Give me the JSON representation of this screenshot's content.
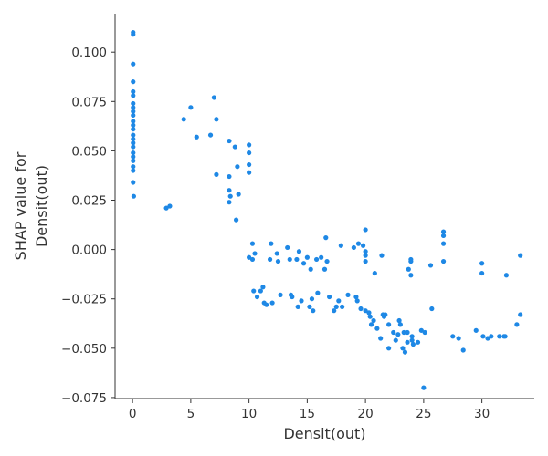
{
  "chart_data": {
    "type": "scatter",
    "xlabel": "Densit(out)",
    "ylabel_lines": [
      "SHAP value for",
      "Densit(out)"
    ],
    "xlim": [
      -1.5,
      34.5
    ],
    "ylim": [
      -0.0755,
      0.1195
    ],
    "x_ticks": [
      0,
      5,
      10,
      15,
      20,
      25,
      30
    ],
    "x_tick_labels": [
      "0",
      "5",
      "10",
      "15",
      "20",
      "25",
      "30"
    ],
    "y_ticks": [
      -0.075,
      -0.05,
      -0.025,
      0.0,
      0.025,
      0.05,
      0.075,
      0.1
    ],
    "y_tick_labels": [
      "−0.075",
      "−0.050",
      "−0.025",
      "0.000",
      "0.025",
      "0.050",
      "0.075",
      "0.100"
    ],
    "point_color": "#1e88e5",
    "grid": false,
    "points": [
      [
        0.05,
        0.11
      ],
      [
        0.05,
        0.109
      ],
      [
        0.05,
        0.094
      ],
      [
        0.05,
        0.085
      ],
      [
        0.05,
        0.08
      ],
      [
        0.05,
        0.078
      ],
      [
        0.05,
        0.074
      ],
      [
        0.05,
        0.072
      ],
      [
        0.05,
        0.07
      ],
      [
        0.05,
        0.068
      ],
      [
        0.05,
        0.065
      ],
      [
        0.05,
        0.063
      ],
      [
        0.05,
        0.061
      ],
      [
        0.05,
        0.058
      ],
      [
        0.05,
        0.056
      ],
      [
        0.05,
        0.054
      ],
      [
        0.05,
        0.052
      ],
      [
        0.05,
        0.049
      ],
      [
        0.05,
        0.047
      ],
      [
        0.05,
        0.045
      ],
      [
        0.05,
        0.042
      ],
      [
        0.05,
        0.04
      ],
      [
        0.05,
        0.034
      ],
      [
        0.1,
        0.027
      ],
      [
        2.9,
        0.021
      ],
      [
        3.2,
        0.022
      ],
      [
        4.4,
        0.066
      ],
      [
        5.0,
        0.072
      ],
      [
        5.5,
        0.057
      ],
      [
        6.7,
        0.058
      ],
      [
        7.0,
        0.077
      ],
      [
        7.2,
        0.066
      ],
      [
        7.2,
        0.038
      ],
      [
        8.3,
        0.055
      ],
      [
        8.3,
        0.037
      ],
      [
        8.3,
        0.03
      ],
      [
        8.4,
        0.027
      ],
      [
        8.3,
        0.024
      ],
      [
        8.8,
        0.052
      ],
      [
        9.0,
        0.042
      ],
      [
        9.1,
        0.028
      ],
      [
        8.9,
        0.015
      ],
      [
        10.0,
        0.053
      ],
      [
        10.0,
        0.049
      ],
      [
        10.0,
        0.043
      ],
      [
        10.0,
        0.039
      ],
      [
        10.0,
        -0.004
      ],
      [
        10.3,
        -0.005
      ],
      [
        10.3,
        0.003
      ],
      [
        10.5,
        -0.002
      ],
      [
        10.4,
        -0.021
      ],
      [
        10.7,
        -0.024
      ],
      [
        11.0,
        -0.021
      ],
      [
        11.2,
        -0.019
      ],
      [
        11.3,
        -0.027
      ],
      [
        11.5,
        -0.028
      ],
      [
        11.9,
        0.003
      ],
      [
        11.8,
        -0.005
      ],
      [
        12.0,
        -0.027
      ],
      [
        12.4,
        -0.002
      ],
      [
        12.5,
        -0.006
      ],
      [
        12.7,
        -0.023
      ],
      [
        13.3,
        0.001
      ],
      [
        13.5,
        -0.005
      ],
      [
        13.6,
        -0.023
      ],
      [
        13.7,
        -0.024
      ],
      [
        14.1,
        -0.005
      ],
      [
        14.3,
        -0.001
      ],
      [
        14.2,
        -0.029
      ],
      [
        14.5,
        -0.026
      ],
      [
        14.7,
        -0.007
      ],
      [
        15.0,
        -0.004
      ],
      [
        15.2,
        -0.029
      ],
      [
        15.3,
        -0.01
      ],
      [
        15.4,
        -0.025
      ],
      [
        15.5,
        -0.031
      ],
      [
        15.8,
        -0.005
      ],
      [
        15.9,
        -0.022
      ],
      [
        16.2,
        -0.004
      ],
      [
        16.5,
        -0.01
      ],
      [
        16.6,
        0.006
      ],
      [
        16.7,
        -0.006
      ],
      [
        16.9,
        -0.024
      ],
      [
        17.3,
        -0.031
      ],
      [
        17.5,
        -0.029
      ],
      [
        17.7,
        -0.026
      ],
      [
        17.9,
        0.002
      ],
      [
        18.0,
        -0.029
      ],
      [
        18.5,
        -0.023
      ],
      [
        19.0,
        0.001
      ],
      [
        19.2,
        -0.024
      ],
      [
        19.3,
        -0.026
      ],
      [
        19.4,
        0.003
      ],
      [
        19.6,
        -0.03
      ],
      [
        19.8,
        0.002
      ],
      [
        20.0,
        0.01
      ],
      [
        20.0,
        -0.001
      ],
      [
        20.0,
        -0.003
      ],
      [
        20.0,
        -0.006
      ],
      [
        20.0,
        -0.031
      ],
      [
        20.3,
        -0.032
      ],
      [
        20.4,
        -0.034
      ],
      [
        20.5,
        -0.038
      ],
      [
        20.7,
        -0.036
      ],
      [
        20.8,
        -0.012
      ],
      [
        21.0,
        -0.04
      ],
      [
        21.3,
        -0.045
      ],
      [
        21.4,
        -0.003
      ],
      [
        21.5,
        -0.033
      ],
      [
        21.6,
        -0.034
      ],
      [
        21.7,
        -0.033
      ],
      [
        22.0,
        -0.05
      ],
      [
        22.0,
        -0.038
      ],
      [
        22.4,
        -0.042
      ],
      [
        22.6,
        -0.046
      ],
      [
        22.8,
        -0.043
      ],
      [
        22.9,
        -0.036
      ],
      [
        23.0,
        -0.038
      ],
      [
        23.2,
        -0.05
      ],
      [
        23.3,
        -0.042
      ],
      [
        23.4,
        -0.052
      ],
      [
        23.6,
        -0.042
      ],
      [
        23.6,
        -0.047
      ],
      [
        23.7,
        -0.01
      ],
      [
        23.9,
        -0.006
      ],
      [
        23.9,
        -0.005
      ],
      [
        23.9,
        -0.013
      ],
      [
        24.0,
        -0.044
      ],
      [
        24.0,
        -0.046
      ],
      [
        24.1,
        -0.048
      ],
      [
        24.5,
        -0.047
      ],
      [
        24.8,
        -0.041
      ],
      [
        25.0,
        -0.07
      ],
      [
        25.1,
        -0.042
      ],
      [
        25.6,
        -0.008
      ],
      [
        25.7,
        -0.03
      ],
      [
        26.7,
        0.009
      ],
      [
        26.7,
        0.007
      ],
      [
        26.7,
        0.003
      ],
      [
        26.7,
        -0.006
      ],
      [
        27.5,
        -0.044
      ],
      [
        28.0,
        -0.045
      ],
      [
        28.4,
        -0.051
      ],
      [
        29.5,
        -0.041
      ],
      [
        30.0,
        -0.007
      ],
      [
        30.0,
        -0.012
      ],
      [
        30.1,
        -0.044
      ],
      [
        30.5,
        -0.045
      ],
      [
        30.8,
        -0.044
      ],
      [
        31.5,
        -0.044
      ],
      [
        31.9,
        -0.044
      ],
      [
        32.0,
        -0.044
      ],
      [
        32.1,
        -0.013
      ],
      [
        33.0,
        -0.038
      ],
      [
        33.3,
        -0.003
      ],
      [
        33.3,
        -0.033
      ]
    ]
  }
}
